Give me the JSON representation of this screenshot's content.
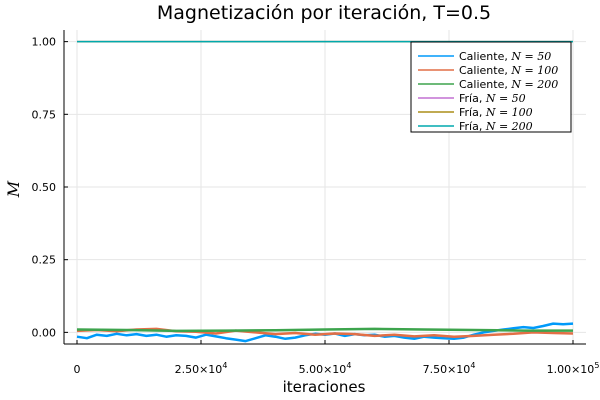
{
  "chart_data": {
    "type": "line",
    "title": "Magnetización por iteración, T=0.5",
    "xlabel": "iteraciones",
    "ylabel": "M",
    "xlim": [
      0,
      100000
    ],
    "ylim": [
      -0.04,
      1.04
    ],
    "xticks": [
      0,
      25000,
      50000,
      75000,
      100000
    ],
    "xtick_labels": [
      {
        "base": "0",
        "exp": ""
      },
      {
        "base": "2.50×10",
        "exp": "4"
      },
      {
        "base": "5.00×10",
        "exp": "4"
      },
      {
        "base": "7.50×10",
        "exp": "4"
      },
      {
        "base": "1.00×10",
        "exp": "5"
      }
    ],
    "yticks": [
      0.0,
      0.25,
      0.5,
      0.75,
      1.0
    ],
    "ytick_labels": [
      "0.00",
      "0.25",
      "0.50",
      "0.75",
      "1.00"
    ],
    "grid": true,
    "legend_position": "top-right",
    "series": [
      {
        "name": "Caliente, ",
        "math": "N = 50",
        "color": "#009AFA",
        "width": 2.5,
        "x": [
          0,
          2000,
          4000,
          6000,
          8000,
          10000,
          12000,
          14000,
          16000,
          18000,
          20000,
          22000,
          24000,
          26000,
          28000,
          30000,
          32000,
          34000,
          36000,
          38000,
          40000,
          42000,
          44000,
          46000,
          48000,
          50000,
          52000,
          54000,
          56000,
          58000,
          60000,
          62000,
          64000,
          66000,
          68000,
          70000,
          72000,
          74000,
          76000,
          78000,
          80000,
          82000,
          84000,
          86000,
          88000,
          90000,
          92000,
          94000,
          96000,
          98000,
          100000
        ],
        "y": [
          -0.015,
          -0.02,
          -0.008,
          -0.012,
          -0.005,
          -0.01,
          -0.006,
          -0.012,
          -0.008,
          -0.015,
          -0.01,
          -0.012,
          -0.018,
          -0.008,
          -0.014,
          -0.02,
          -0.025,
          -0.03,
          -0.02,
          -0.01,
          -0.015,
          -0.022,
          -0.018,
          -0.01,
          -0.005,
          -0.008,
          -0.004,
          -0.012,
          -0.006,
          -0.01,
          -0.008,
          -0.015,
          -0.012,
          -0.018,
          -0.022,
          -0.015,
          -0.018,
          -0.02,
          -0.022,
          -0.018,
          -0.008,
          0.0,
          0.005,
          0.01,
          0.014,
          0.018,
          0.015,
          0.022,
          0.03,
          0.028,
          0.03
        ]
      },
      {
        "name": "Caliente, ",
        "math": "N = 100",
        "color": "#E26F46",
        "width": 2.5,
        "x": [
          0,
          4000,
          8000,
          12000,
          16000,
          20000,
          24000,
          28000,
          32000,
          36000,
          40000,
          44000,
          48000,
          52000,
          56000,
          60000,
          64000,
          68000,
          72000,
          76000,
          80000,
          84000,
          88000,
          92000,
          96000,
          100000
        ],
        "y": [
          0.005,
          0.008,
          0.004,
          0.01,
          0.012,
          0.004,
          0.002,
          -0.004,
          0.006,
          0.0,
          -0.006,
          -0.002,
          -0.008,
          -0.004,
          -0.006,
          -0.012,
          -0.008,
          -0.014,
          -0.01,
          -0.015,
          -0.012,
          -0.008,
          -0.005,
          0.0,
          -0.002,
          -0.004
        ]
      },
      {
        "name": "Caliente, ",
        "math": "N = 200",
        "color": "#3DA44D",
        "width": 2.5,
        "x": [
          0,
          10000,
          20000,
          30000,
          40000,
          50000,
          60000,
          70000,
          80000,
          90000,
          100000
        ],
        "y": [
          0.01,
          0.008,
          0.005,
          0.006,
          0.007,
          0.01,
          0.012,
          0.01,
          0.008,
          0.006,
          0.006
        ]
      },
      {
        "name": "Fría, ",
        "math": "N = 50",
        "color": "#C271D2",
        "width": 1.5,
        "x": [
          0,
          100000
        ],
        "y": [
          1.0,
          1.0
        ]
      },
      {
        "name": "Fría, ",
        "math": "N = 100",
        "color": "#AC8D18",
        "width": 1.5,
        "x": [
          0,
          100000
        ],
        "y": [
          1.0,
          1.0
        ]
      },
      {
        "name": "Fría, ",
        "math": "N = 200",
        "color": "#00A9AD",
        "width": 1.5,
        "x": [
          0,
          100000
        ],
        "y": [
          1.0,
          1.0
        ]
      }
    ]
  }
}
